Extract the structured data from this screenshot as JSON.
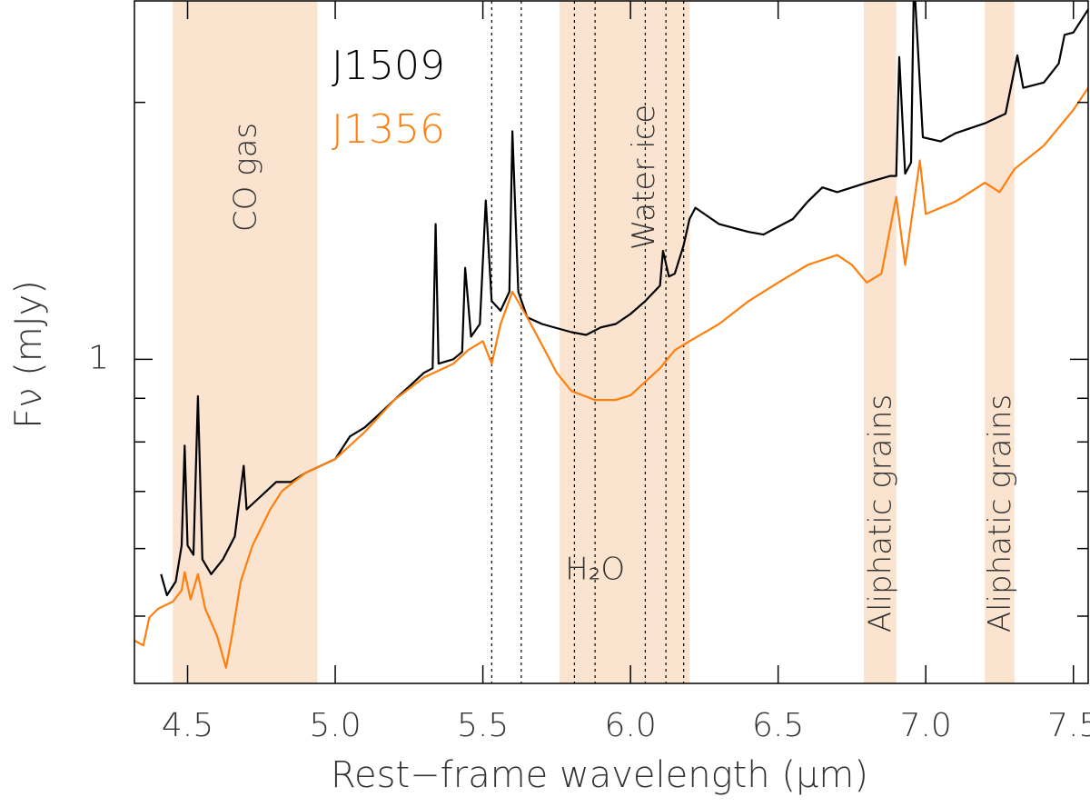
{
  "chart_data": {
    "type": "line",
    "xlabel": "Rest−frame wavelength (μm)",
    "ylabel": "Fν (mJy)",
    "xlim": [
      4.32,
      7.55
    ],
    "xticks": [
      4.5,
      5.0,
      5.5,
      6.0,
      6.5,
      7.0,
      7.5
    ],
    "xtick_labels": [
      "4.5",
      "5.0",
      "5.5",
      "6.0",
      "6.5",
      "7.0",
      "7.5"
    ],
    "ylim": [
      0.417,
      2.63
    ],
    "yscale": "log",
    "yticks": [
      1
    ],
    "yminor_ticks": [
      0.5,
      0.6,
      0.7,
      0.8,
      0.9,
      2
    ],
    "bands": [
      {
        "range": [
          4.45,
          4.94
        ],
        "label": "CO gas"
      },
      {
        "range": [
          5.76,
          6.2
        ],
        "label": "Water ice"
      },
      {
        "range": [
          6.79,
          6.9
        ],
        "label": "Aliphatic grains"
      },
      {
        "range": [
          7.2,
          7.3
        ],
        "label": "Aliphatic grains"
      }
    ],
    "band_color": "#fbe4cf",
    "vlines": [
      5.53,
      5.63,
      5.81,
      5.88,
      6.05,
      6.12,
      6.18
    ],
    "vlines_label": "H₂O",
    "series": [
      {
        "name": "J1509",
        "color": "#000000",
        "x": [
          4.41,
          4.43,
          4.46,
          4.48,
          4.49,
          4.5,
          4.52,
          4.535,
          4.55,
          4.58,
          4.62,
          4.66,
          4.69,
          4.7,
          4.75,
          4.8,
          4.85,
          4.9,
          5.0,
          5.05,
          5.1,
          5.15,
          5.2,
          5.25,
          5.3,
          5.33,
          5.34,
          5.35,
          5.4,
          5.43,
          5.44,
          5.46,
          5.49,
          5.51,
          5.53,
          5.56,
          5.59,
          5.6,
          5.62,
          5.65,
          5.7,
          5.8,
          5.85,
          5.9,
          5.95,
          6.0,
          6.05,
          6.1,
          6.11,
          6.13,
          6.15,
          6.18,
          6.2,
          6.22,
          6.3,
          6.4,
          6.45,
          6.5,
          6.55,
          6.6,
          6.65,
          6.7,
          6.8,
          6.88,
          6.9,
          6.91,
          6.93,
          6.95,
          6.96,
          6.99,
          7.05,
          7.1,
          7.2,
          7.27,
          7.31,
          7.33,
          7.4,
          7.45,
          7.47,
          7.5,
          7.55
        ],
        "values": [
          0.56,
          0.529,
          0.549,
          0.605,
          0.792,
          0.605,
          0.59,
          0.905,
          0.583,
          0.56,
          0.583,
          0.62,
          0.75,
          0.667,
          0.692,
          0.718,
          0.718,
          0.736,
          0.764,
          0.812,
          0.832,
          0.863,
          0.896,
          0.929,
          0.964,
          0.976,
          1.44,
          0.988,
          1.0,
          1.02,
          1.28,
          1.063,
          1.1,
          1.535,
          1.17,
          1.14,
          1.2,
          1.85,
          1.2,
          1.12,
          1.1,
          1.076,
          1.068,
          1.09,
          1.1,
          1.13,
          1.17,
          1.22,
          1.34,
          1.25,
          1.26,
          1.36,
          1.46,
          1.505,
          1.44,
          1.41,
          1.4,
          1.43,
          1.46,
          1.53,
          1.59,
          1.57,
          1.61,
          1.64,
          1.64,
          2.26,
          1.65,
          1.7,
          2.8,
          1.82,
          1.8,
          1.84,
          1.89,
          1.94,
          2.27,
          2.08,
          2.11,
          2.22,
          2.4,
          2.415,
          2.57
        ]
      },
      {
        "name": "J1356",
        "color": "#ff7f0e",
        "x": [
          4.32,
          4.35,
          4.37,
          4.4,
          4.45,
          4.48,
          4.49,
          4.51,
          4.535,
          4.56,
          4.6,
          4.63,
          4.65,
          4.68,
          4.72,
          4.78,
          4.82,
          4.9,
          5.0,
          5.1,
          5.2,
          5.3,
          5.4,
          5.45,
          5.5,
          5.53,
          5.56,
          5.6,
          5.65,
          5.7,
          5.75,
          5.8,
          5.88,
          5.95,
          6.0,
          6.05,
          6.1,
          6.15,
          6.2,
          6.3,
          6.4,
          6.5,
          6.6,
          6.7,
          6.75,
          6.8,
          6.85,
          6.9,
          6.93,
          6.98,
          7.0,
          7.1,
          7.2,
          7.25,
          7.3,
          7.4,
          7.5,
          7.55
        ],
        "values": [
          0.468,
          0.462,
          0.498,
          0.51,
          0.52,
          0.536,
          0.563,
          0.523,
          0.56,
          0.51,
          0.474,
          0.435,
          0.474,
          0.549,
          0.605,
          0.667,
          0.701,
          0.736,
          0.764,
          0.822,
          0.896,
          0.952,
          0.988,
          1.025,
          1.05,
          0.988,
          1.1,
          1.2,
          1.12,
          1.04,
          0.964,
          0.918,
          0.896,
          0.896,
          0.907,
          0.941,
          0.976,
          1.025,
          1.05,
          1.1,
          1.17,
          1.23,
          1.29,
          1.325,
          1.29,
          1.23,
          1.26,
          1.55,
          1.29,
          1.71,
          1.48,
          1.53,
          1.61,
          1.57,
          1.67,
          1.78,
          1.96,
          2.08
        ]
      }
    ]
  }
}
